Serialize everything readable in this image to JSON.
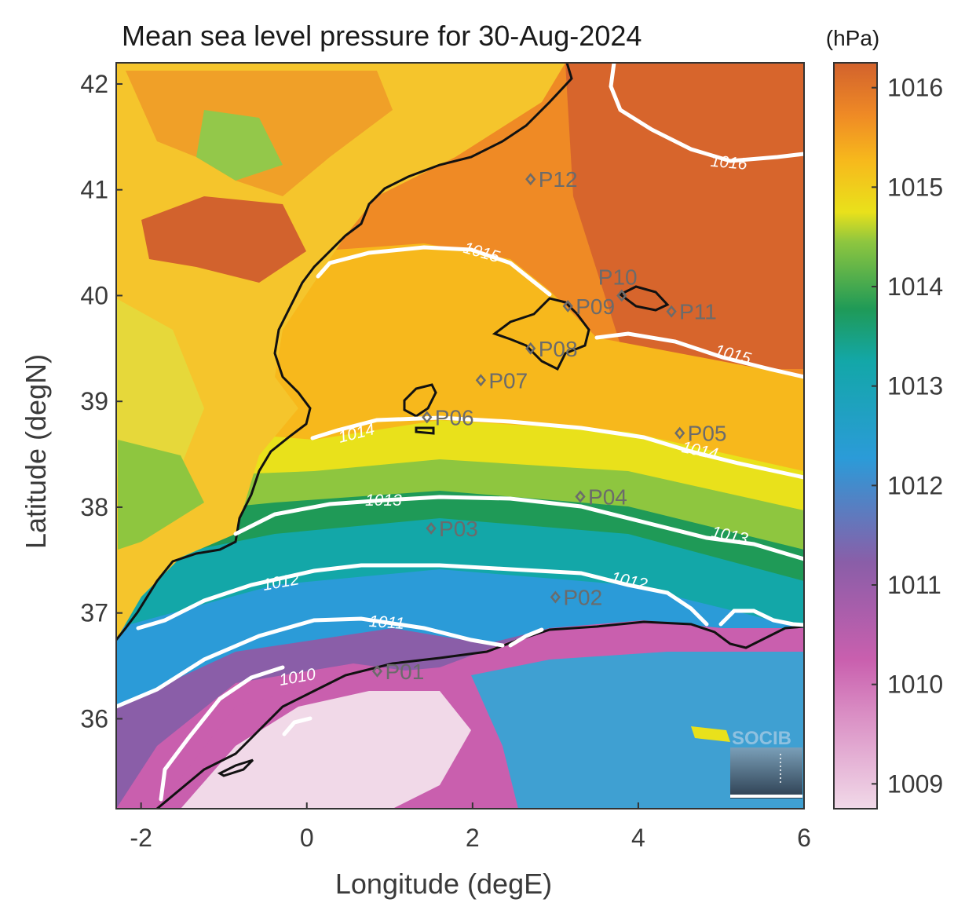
{
  "title": "Mean sea level pressure for 30-Aug-2024",
  "xlabel": "Longitude (degE)",
  "ylabel": "Latitude (degN)",
  "x_ticks": [
    "-2",
    "0",
    "2",
    "4",
    "6"
  ],
  "y_ticks": [
    "36",
    "37",
    "38",
    "39",
    "40",
    "41",
    "42"
  ],
  "colorbar": {
    "unit": "(hPa)",
    "ticks": [
      "1009",
      "1010",
      "1011",
      "1012",
      "1013",
      "1014",
      "1015",
      "1016"
    ],
    "range": [
      1008.75,
      1016.25
    ],
    "colors": [
      "#f1d9e8",
      "#c95fae",
      "#8a5ea8",
      "#2b9bd8",
      "#13a7a8",
      "#1f9a57",
      "#e9e11b",
      "#f7b81c",
      "#d2622d"
    ]
  },
  "map": {
    "lon_range": [
      -2.3,
      6.0
    ],
    "lat_range": [
      35.15,
      42.2
    ],
    "contours": [
      {
        "level": "1016",
        "label": "1016"
      },
      {
        "level": "1015",
        "label": "1015"
      },
      {
        "level": "1014",
        "label": "1014"
      },
      {
        "level": "1013",
        "label": "1013"
      },
      {
        "level": "1012",
        "label": "1012"
      },
      {
        "level": "1011",
        "label": "1011"
      },
      {
        "level": "1010",
        "label": "1010"
      }
    ],
    "stations": [
      {
        "id": "P01",
        "lon": 0.85,
        "lat": 36.45
      },
      {
        "id": "P02",
        "lon": 3.0,
        "lat": 37.15
      },
      {
        "id": "P03",
        "lon": 1.5,
        "lat": 37.8
      },
      {
        "id": "P04",
        "lon": 3.3,
        "lat": 38.1
      },
      {
        "id": "P05",
        "lon": 4.5,
        "lat": 38.7
      },
      {
        "id": "P06",
        "lon": 1.45,
        "lat": 38.85
      },
      {
        "id": "P07",
        "lon": 2.1,
        "lat": 39.2
      },
      {
        "id": "P08",
        "lon": 2.7,
        "lat": 39.5
      },
      {
        "id": "P09",
        "lon": 3.15,
        "lat": 39.9
      },
      {
        "id": "P10",
        "lon": 3.8,
        "lat": 40.0
      },
      {
        "id": "P11",
        "lon": 4.4,
        "lat": 39.85
      },
      {
        "id": "P12",
        "lon": 2.7,
        "lat": 41.1
      }
    ]
  },
  "logo": {
    "text": "SOCIB"
  }
}
